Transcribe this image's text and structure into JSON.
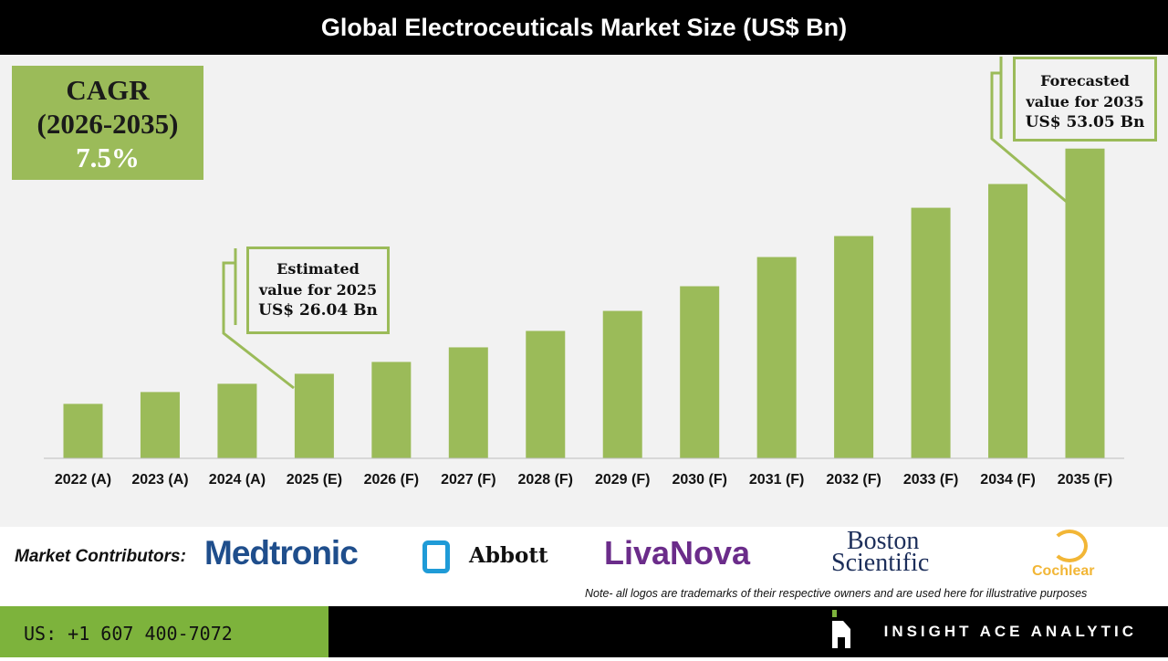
{
  "title": "Global Electroceuticals Market Size (US$ Bn)",
  "cagr": {
    "label": "CAGR",
    "period": "(2026-2035)",
    "value": "7.5%"
  },
  "callouts": {
    "estimated": {
      "l1": "Estimated",
      "l2": "value for 2025",
      "l3": "US$ 26.04 Bn"
    },
    "forecast": {
      "l1": "Forecasted",
      "l2": "value for 2035",
      "l3": "US$ 53.05 Bn"
    }
  },
  "chart_data": {
    "type": "bar",
    "title": "Global Electroceuticals Market Size (US$ Bn)",
    "categories": [
      "2022 (A)",
      "2023 (A)",
      "2024 (A)",
      "2025 (E)",
      "2026 (F)",
      "2027 (F)",
      "2028 (F)",
      "2029 (F)",
      "2030 (F)",
      "2031 (F)",
      "2032 (F)",
      "2033 (F)",
      "2034 (F)",
      "2035 (F)"
    ],
    "values": [
      22.43,
      23.85,
      24.84,
      26.04,
      27.46,
      29.21,
      31.18,
      33.58,
      36.54,
      40.04,
      42.56,
      45.95,
      48.8,
      53.05
    ],
    "ylim": [
      15.9,
      64.3
    ],
    "grid": false,
    "bar_color": "#9bbb59"
  },
  "contributors": {
    "label": "Market Contributors:",
    "logos": [
      "Medtronic",
      "Abbott",
      "LivaNova",
      "Boston",
      "Scientific",
      "Cochlear"
    ],
    "note": "Note- all logos are trademarks of their respective owners and are used here for illustrative purposes"
  },
  "footer": {
    "phone": "US: +1 607 400-7072",
    "brand": "INSIGHT ACE ANALYTIC"
  }
}
